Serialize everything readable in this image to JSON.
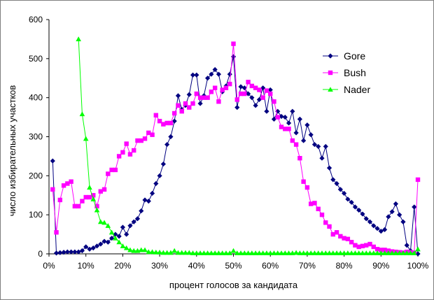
{
  "chart_data": {
    "type": "line",
    "title": "",
    "xlabel": "процент голосов за кандидата",
    "ylabel": "число избирательных участков",
    "xlim": [
      0,
      100
    ],
    "ylim": [
      0,
      600
    ],
    "x_tick_labels": [
      "0%",
      "10%",
      "20%",
      "30%",
      "40%",
      "50%",
      "60%",
      "70%",
      "80%",
      "90%",
      "100%"
    ],
    "y_tick_labels": [
      "0",
      "100",
      "200",
      "300",
      "400",
      "500",
      "600"
    ],
    "grid": false,
    "legend_position": "right",
    "series": [
      {
        "name": "Gore",
        "color": "#000080",
        "marker": "diamond",
        "x": [
          1,
          2,
          3,
          4,
          5,
          6,
          7,
          8,
          9,
          10,
          11,
          12,
          13,
          14,
          15,
          16,
          17,
          18,
          19,
          20,
          21,
          22,
          23,
          24,
          25,
          26,
          27,
          28,
          29,
          30,
          31,
          32,
          33,
          34,
          35,
          36,
          37,
          38,
          39,
          40,
          41,
          42,
          43,
          44,
          45,
          46,
          47,
          48,
          49,
          50,
          51,
          52,
          53,
          54,
          55,
          56,
          57,
          58,
          59,
          60,
          61,
          62,
          63,
          64,
          65,
          66,
          67,
          68,
          69,
          70,
          71,
          72,
          73,
          74,
          75,
          76,
          77,
          78,
          79,
          80,
          81,
          82,
          83,
          84,
          85,
          86,
          87,
          88,
          89,
          90,
          91,
          92,
          93,
          94,
          95,
          96,
          97,
          98,
          99,
          100
        ],
        "values": [
          238,
          2,
          3,
          4,
          5,
          5,
          5,
          5,
          8,
          18,
          12,
          15,
          20,
          25,
          32,
          30,
          40,
          50,
          45,
          68,
          50,
          72,
          82,
          90,
          110,
          138,
          135,
          155,
          180,
          200,
          230,
          280,
          300,
          340,
          405,
          370,
          380,
          408,
          458,
          458,
          385,
          405,
          450,
          460,
          472,
          460,
          415,
          430,
          460,
          505,
          375,
          428,
          425,
          410,
          400,
          380,
          395,
          425,
          365,
          420,
          345,
          365,
          352,
          350,
          335,
          365,
          310,
          345,
          290,
          330,
          305,
          280,
          275,
          245,
          275,
          220,
          190,
          180,
          165,
          155,
          140,
          132,
          120,
          112,
          102,
          90,
          82,
          72,
          65,
          58,
          62,
          95,
          108,
          128,
          100,
          82,
          22,
          8,
          120,
          0
        ]
      },
      {
        "name": "Bush",
        "color": "#ff00ff",
        "marker": "square",
        "x": [
          1,
          2,
          3,
          4,
          5,
          6,
          7,
          8,
          9,
          10,
          11,
          12,
          13,
          14,
          15,
          16,
          17,
          18,
          19,
          20,
          21,
          22,
          23,
          24,
          25,
          26,
          27,
          28,
          29,
          30,
          31,
          32,
          33,
          34,
          35,
          36,
          37,
          38,
          39,
          40,
          41,
          42,
          43,
          44,
          45,
          46,
          47,
          48,
          49,
          50,
          51,
          52,
          53,
          54,
          55,
          56,
          57,
          58,
          59,
          60,
          61,
          62,
          63,
          64,
          65,
          66,
          67,
          68,
          69,
          70,
          71,
          72,
          73,
          74,
          75,
          76,
          77,
          78,
          79,
          80,
          81,
          82,
          83,
          84,
          85,
          86,
          87,
          88,
          89,
          90,
          91,
          92,
          93,
          94,
          95,
          96,
          97,
          98,
          99,
          100
        ],
        "values": [
          165,
          55,
          138,
          175,
          180,
          185,
          122,
          122,
          135,
          145,
          145,
          150,
          122,
          160,
          165,
          205,
          215,
          215,
          250,
          260,
          282,
          255,
          265,
          290,
          290,
          295,
          310,
          305,
          355,
          340,
          332,
          335,
          335,
          360,
          380,
          365,
          385,
          375,
          385,
          410,
          400,
          400,
          400,
          415,
          425,
          390,
          420,
          425,
          435,
          538,
          395,
          410,
          410,
          440,
          430,
          425,
          420,
          400,
          418,
          410,
          390,
          350,
          325,
          320,
          320,
          290,
          280,
          245,
          185,
          170,
          128,
          130,
          115,
          100,
          80,
          70,
          50,
          55,
          45,
          40,
          38,
          30,
          22,
          18,
          20,
          22,
          25,
          18,
          12,
          10,
          10,
          8,
          6,
          5,
          4,
          3,
          5,
          4,
          3,
          190
        ]
      },
      {
        "name": "Nader",
        "color": "#00ff00",
        "marker": "triangle",
        "x": [
          8,
          9,
          10,
          11,
          12,
          13,
          14,
          15,
          16,
          17,
          18,
          19,
          20,
          21,
          22,
          23,
          24,
          25,
          26,
          27,
          28,
          29,
          30,
          31,
          32,
          33,
          34,
          35,
          36,
          37,
          38,
          39,
          40,
          41,
          42,
          43,
          44,
          45,
          46,
          47,
          48,
          49,
          50,
          51,
          52,
          53,
          54,
          55,
          56,
          57,
          58,
          59,
          60,
          61,
          62,
          63,
          64,
          65,
          66,
          67,
          68,
          69,
          70,
          71,
          72,
          73,
          74,
          75,
          76,
          77,
          78,
          79,
          80,
          81,
          82,
          83,
          84,
          85,
          86,
          87,
          88,
          89,
          90,
          91,
          92,
          93,
          94,
          95,
          96,
          97,
          98,
          99,
          100
        ],
        "values": [
          550,
          358,
          295,
          170,
          140,
          112,
          82,
          80,
          72,
          55,
          40,
          30,
          20,
          15,
          10,
          8,
          8,
          10,
          10,
          5,
          5,
          4,
          4,
          3,
          3,
          3,
          8,
          3,
          3,
          3,
          3,
          2,
          2,
          2,
          2,
          2,
          2,
          2,
          2,
          2,
          2,
          2,
          8,
          2,
          2,
          2,
          2,
          2,
          2,
          2,
          2,
          2,
          2,
          2,
          2,
          2,
          2,
          2,
          2,
          3,
          2,
          2,
          2,
          2,
          2,
          2,
          2,
          2,
          2,
          2,
          2,
          2,
          2,
          2,
          2,
          2,
          2,
          2,
          2,
          2,
          2,
          2,
          2,
          2,
          2,
          2,
          2,
          2,
          2,
          2,
          2,
          2,
          12
        ]
      }
    ]
  }
}
